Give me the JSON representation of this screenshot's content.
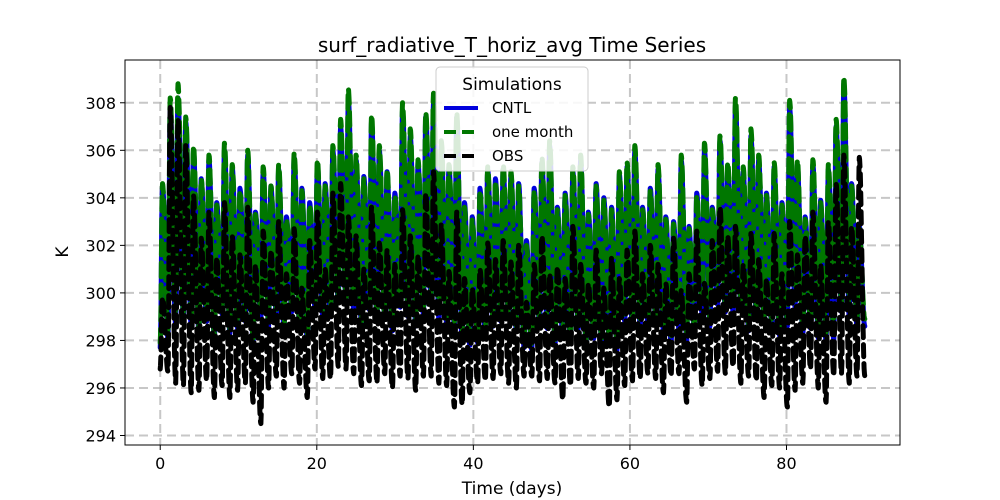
{
  "chart_data": {
    "type": "line",
    "title": "surf_radiative_T_horiz_avg Time Series",
    "xlabel": "Time (days)",
    "ylabel": "K",
    "xlim": [
      -4.5,
      94.5
    ],
    "ylim": [
      293.6,
      309.8
    ],
    "xticks": [
      0,
      20,
      40,
      60,
      80
    ],
    "xtick_labels": [
      "0",
      "20",
      "40",
      "60",
      "80"
    ],
    "yticks": [
      294,
      296,
      298,
      300,
      302,
      304,
      306,
      308
    ],
    "ytick_labels": [
      "294",
      "296",
      "298",
      "300",
      "302",
      "304",
      "306",
      "308"
    ],
    "grid": true,
    "legend": {
      "title": "Simulations",
      "position": "upper-center"
    },
    "series": [
      {
        "name": "CNTL",
        "color": "#0000dd",
        "style": "solid",
        "day_start": 0,
        "day_end": 90,
        "daily_max": [
          304.5,
          307.8,
          308.2,
          307.2,
          306.0,
          304.8,
          305.6,
          303.8,
          306.0,
          305.3,
          304.4,
          305.8,
          303.4,
          305.1,
          304.5,
          305.2,
          303.2,
          305.7,
          304.4,
          303.8,
          305.4,
          304.6,
          306.0,
          307.0,
          308.2,
          305.6,
          304.9,
          307.2,
          306.0,
          305.1,
          304.2,
          307.7,
          306.6,
          305.5,
          307.4,
          308.0,
          306.2,
          305.3,
          307.4,
          303.8,
          303.2,
          304.4,
          305.2,
          304.8,
          305.2,
          305.0,
          304.6,
          302.2,
          304.4,
          305.5,
          306.2,
          303.6,
          304.2,
          305.1,
          305.6,
          303.4,
          304.6,
          304.0,
          303.6,
          305.0,
          305.3,
          306.0,
          303.6,
          304.4,
          305.2,
          303.2,
          303.0,
          305.6,
          302.8,
          304.2,
          306.0,
          303.6,
          306.4,
          305.3,
          307.9,
          305.1,
          306.6,
          305.6,
          304.2,
          305.3,
          303.8,
          307.8,
          305.4,
          303.2,
          305.4,
          303.9,
          305.2,
          307.0,
          308.8,
          304.6,
          302.8
        ],
        "daily_min": [
          297.7,
          298.1,
          298.6,
          298.9,
          298.6,
          298.3,
          298.8,
          298.0,
          299.1,
          298.3,
          298.5,
          298.8,
          297.9,
          298.9,
          298.6,
          299.1,
          298.4,
          299.2,
          298.6,
          298.0,
          299.4,
          299.0,
          299.0,
          299.6,
          299.5,
          299.2,
          298.6,
          299.3,
          298.8,
          298.9,
          298.4,
          299.4,
          299.0,
          298.6,
          299.1,
          299.6,
          298.9,
          298.7,
          298.5,
          297.9,
          297.8,
          297.9,
          298.1,
          298.6,
          298.8,
          298.9,
          298.4,
          297.7,
          297.6,
          298.6,
          298.5,
          297.8,
          298.1,
          297.9,
          298.5,
          297.8,
          298.1,
          297.9,
          298.0,
          297.6,
          298.8,
          298.5,
          298.6,
          298.7,
          298.8,
          298.4,
          297.9,
          298.5,
          298.0,
          298.3,
          299.1,
          298.6,
          299.5,
          299.2,
          299.2,
          299.3,
          298.4,
          299.1,
          298.7,
          298.5,
          298.2,
          298.6,
          299.4,
          298.2,
          298.5,
          298.1,
          298.0,
          298.0,
          299.2,
          299.0,
          298.6
        ]
      },
      {
        "name": "one month",
        "color": "#007700",
        "style": "dashed",
        "day_start": 0,
        "day_end": 90,
        "daily_max": [
          304.6,
          308.2,
          308.8,
          307.4,
          306.2,
          304.8,
          305.8,
          303.7,
          306.3,
          305.4,
          304.3,
          306.0,
          303.3,
          305.3,
          304.5,
          305.4,
          303.1,
          305.9,
          304.3,
          303.7,
          305.6,
          304.5,
          306.2,
          307.3,
          308.6,
          305.8,
          304.8,
          307.5,
          306.2,
          305.2,
          304.1,
          308.0,
          306.9,
          305.6,
          307.6,
          308.4,
          306.4,
          305.4,
          307.6,
          303.6,
          303.1,
          304.3,
          305.3,
          304.7,
          305.4,
          305.1,
          304.5,
          302.0,
          304.3,
          305.7,
          306.4,
          303.5,
          304.1,
          305.3,
          305.8,
          303.3,
          304.5,
          303.9,
          303.5,
          305.1,
          305.5,
          306.2,
          303.5,
          304.3,
          305.4,
          303.1,
          302.9,
          305.8,
          302.7,
          304.1,
          306.3,
          303.5,
          306.6,
          305.5,
          308.2,
          305.3,
          306.9,
          305.8,
          304.1,
          305.5,
          303.7,
          308.1,
          305.6,
          303.1,
          305.6,
          303.8,
          305.4,
          307.3,
          309.1,
          304.5,
          302.7
        ],
        "daily_min": [
          297.9,
          298.4,
          298.9,
          299.2,
          298.8,
          298.5,
          299.1,
          298.2,
          299.4,
          298.5,
          298.7,
          299.0,
          298.1,
          299.2,
          298.8,
          299.3,
          298.6,
          299.5,
          298.8,
          298.2,
          299.6,
          299.2,
          299.3,
          299.9,
          299.8,
          299.5,
          298.8,
          299.6,
          299.1,
          299.1,
          298.6,
          299.7,
          299.3,
          298.8,
          299.4,
          299.9,
          299.2,
          298.9,
          298.8,
          298.1,
          298.0,
          298.1,
          298.4,
          298.9,
          299.0,
          299.1,
          298.6,
          297.9,
          297.8,
          298.9,
          298.8,
          298.0,
          298.3,
          298.2,
          298.8,
          298.0,
          298.3,
          298.1,
          298.2,
          297.8,
          299.1,
          298.8,
          298.9,
          299.0,
          299.1,
          298.7,
          298.2,
          298.8,
          298.3,
          298.6,
          299.4,
          298.9,
          299.8,
          299.5,
          299.5,
          299.6,
          298.7,
          299.4,
          299.0,
          298.8,
          298.5,
          298.9,
          299.7,
          298.5,
          298.8,
          298.4,
          298.3,
          298.3,
          299.5,
          299.3,
          298.9
        ]
      },
      {
        "name": "OBS",
        "color": "#000000",
        "style": "dashed",
        "day_start": 0,
        "day_end": 90,
        "daily_max": [
          299.8,
          307.8,
          307.3,
          306.2,
          304.1,
          302.3,
          303.4,
          301.5,
          303.8,
          302.4,
          301.6,
          303.6,
          301.2,
          302.6,
          301.8,
          303.0,
          300.8,
          302.7,
          300.2,
          302.2,
          303.4,
          301.0,
          304.2,
          304.6,
          303.2,
          302.4,
          301.0,
          303.6,
          302.1,
          301.8,
          301.2,
          303.5,
          302.4,
          301.6,
          304.2,
          305.1,
          302.9,
          300.9,
          303.4,
          300.6,
          300.2,
          301.0,
          302.1,
          301.4,
          302.2,
          301.3,
          302.0,
          299.6,
          301.2,
          302.4,
          300.8,
          301.1,
          300.6,
          302.8,
          301.2,
          300.4,
          301.8,
          300.2,
          301.5,
          300.6,
          301.8,
          302.6,
          300.8,
          302.0,
          301.2,
          300.4,
          302.3,
          300.1,
          300.8,
          302.6,
          300.4,
          302.2,
          303.6,
          302.4,
          302.8,
          301.2,
          302.5,
          301.4,
          300.6,
          302.5,
          300.8,
          303.0,
          301.6,
          302.4,
          303.4,
          301.2,
          303.0,
          304.6,
          305.8,
          302.8,
          305.7
        ],
        "daily_min": [
          296.8,
          296.7,
          296.2,
          296.1,
          295.8,
          295.9,
          296.3,
          295.6,
          296.1,
          295.6,
          295.9,
          296.2,
          295.4,
          294.5,
          296.0,
          296.5,
          296.0,
          296.6,
          296.2,
          295.6,
          296.8,
          296.4,
          296.4,
          296.9,
          296.8,
          296.6,
          296.1,
          296.3,
          296.2,
          296.6,
          296.0,
          296.5,
          296.4,
          295.9,
          296.5,
          296.5,
          296.2,
          296.1,
          295.2,
          295.3,
          295.8,
          296.2,
          296.3,
          296.4,
          296.6,
          296.2,
          296.0,
          296.5,
          296.5,
          296.3,
          296.4,
          296.2,
          295.5,
          296.1,
          296.4,
          296.2,
          296.0,
          296.6,
          295.2,
          295.5,
          296.1,
          296.3,
          296.4,
          296.6,
          296.4,
          295.8,
          296.5,
          296.6,
          295.4,
          296.8,
          296.1,
          296.4,
          296.7,
          296.6,
          296.9,
          296.2,
          296.5,
          296.3,
          295.6,
          296.1,
          296.0,
          295.2,
          295.9,
          296.2,
          296.8,
          296.0,
          295.4,
          296.5,
          296.6,
          296.2,
          296.5
        ]
      }
    ]
  }
}
